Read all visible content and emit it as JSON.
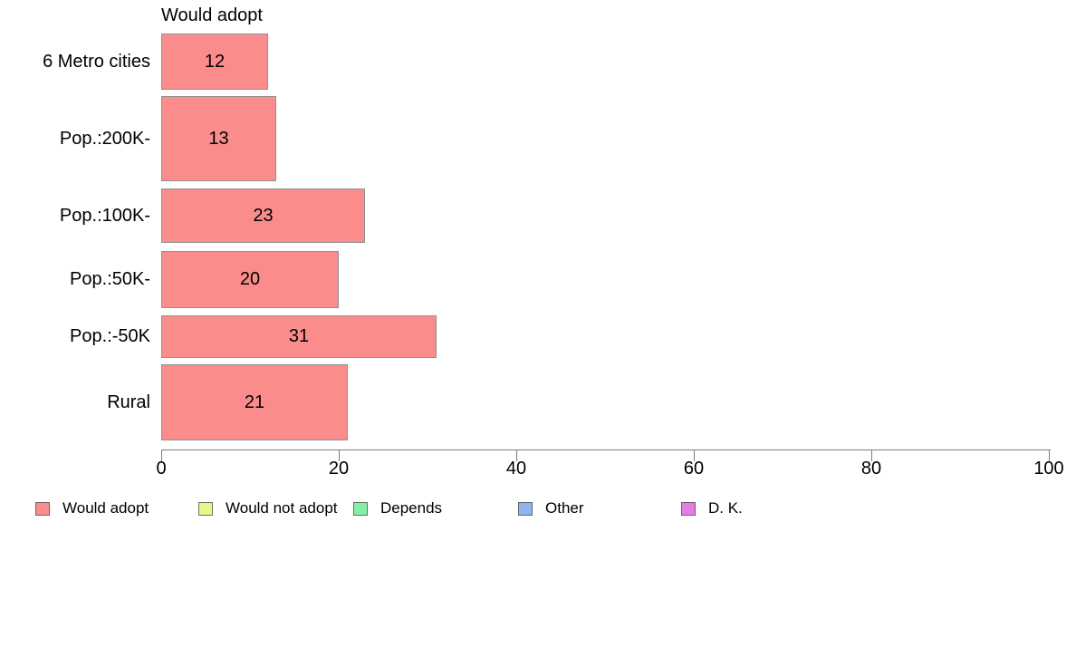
{
  "chart_data": {
    "type": "bar",
    "orientation": "horizontal",
    "title": "Would adopt",
    "categories": [
      "6 Metro cities",
      "Pop.:200K-",
      "Pop.:100K-",
      "Pop.:50K-",
      "Pop.:-50K",
      "Rural"
    ],
    "values": [
      12,
      13,
      23,
      20,
      31,
      21
    ],
    "xlabel": "",
    "ylabel": "",
    "xlim": [
      0,
      100
    ],
    "x_ticks": [
      0,
      20,
      40,
      60,
      80,
      100
    ],
    "grid": "off",
    "value_labels": "inside-center",
    "bar_color": "#FA8C8C",
    "bar_border_color": "#909090",
    "legend_position": "bottom"
  },
  "legend": {
    "items": [
      {
        "label": "Would adopt",
        "color": "#FA8C8C"
      },
      {
        "label": "Would not adopt",
        "color": "#EBF58A"
      },
      {
        "label": "Depends",
        "color": "#85EFA9"
      },
      {
        "label": "Other",
        "color": "#8FB5EE"
      },
      {
        "label": "D. K.",
        "color": "#E47CE4"
      }
    ]
  }
}
